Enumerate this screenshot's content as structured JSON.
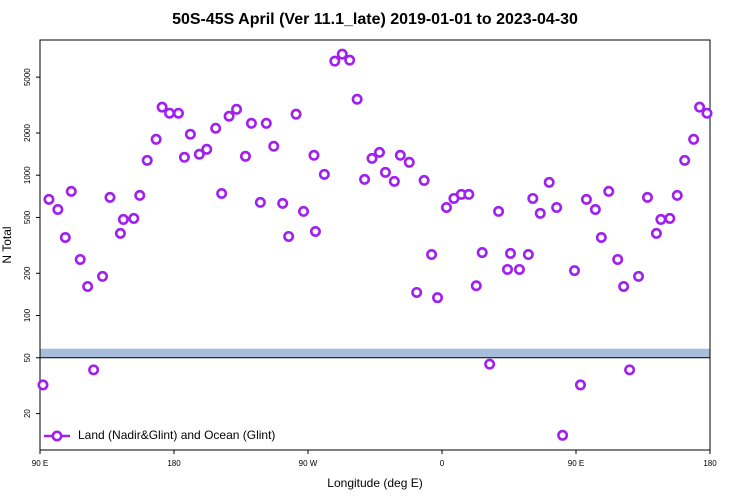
{
  "chart_data": {
    "type": "scatter",
    "title": "50S-45S April (Ver 11.1_late)   2019-01-01 to 2023-04-30",
    "x_label": "Longitude (deg E)",
    "y_label": "N Total",
    "log_y": true,
    "legend": "lower left",
    "xlim": [
      90,
      540
    ],
    "xticks": [
      {
        "value": 90,
        "label": "90 E"
      },
      {
        "value": 180,
        "label": "180"
      },
      {
        "value": 270,
        "label": "90 W"
      },
      {
        "value": 360,
        "label": "0"
      },
      {
        "value": 450,
        "label": "90 E"
      },
      {
        "value": 540,
        "label": "180"
      }
    ],
    "ylim": [
      11,
      9200
    ],
    "yticks": [
      20,
      50,
      100,
      200,
      500,
      1000,
      2000,
      5000
    ],
    "band": {
      "ylim": [
        50,
        58
      ],
      "color": "#a6bddb"
    },
    "hline": 50,
    "series": [
      {
        "name": "Land (Nadir&Glint) and Ocean (Glint)",
        "color": "#a020f0",
        "x": [
          92,
          96,
          102,
          107,
          111,
          117,
          122,
          126,
          132,
          137,
          144,
          146,
          153,
          157,
          162,
          168,
          172,
          177,
          183,
          187,
          191,
          197,
          202,
          208,
          212,
          217,
          222,
          228,
          232,
          238,
          242,
          247,
          253,
          257,
          262,
          267,
          274,
          275,
          281,
          288,
          293,
          298,
          303,
          308,
          313,
          318,
          322,
          328,
          332,
          338,
          343,
          348,
          353,
          357,
          363,
          368,
          373,
          378,
          383,
          387,
          392,
          398,
          404,
          406,
          412,
          418,
          421,
          426,
          432,
          437,
          441,
          449,
          453,
          457,
          463,
          467,
          472,
          478,
          482,
          486,
          492,
          498,
          504,
          507,
          513,
          518,
          523,
          529,
          533,
          538
        ],
        "values": [
          32,
          673,
          570,
          360,
          767,
          251,
          161,
          41,
          190,
          695,
          385,
          484,
          492,
          718,
          1276,
          1803,
          3055,
          2767,
          2767,
          1342,
          1959,
          1410,
          1530,
          2163,
          741,
          2632,
          2950,
          1364,
          2344,
          640,
          2344,
          1608,
          630,
          366,
          2723,
          552,
          1387,
          397,
          1014,
          6500,
          7290,
          6610,
          3480,
          934,
          1318,
          1455,
          1048,
          904,
          1387,
          1236,
          146,
          918,
          272,
          134,
          589,
          683,
          730,
          730,
          163,
          281,
          45,
          552,
          213,
          277,
          213,
          272,
          683,
          535,
          889,
          589,
          14,
          209,
          32,
          673,
          570,
          360,
          767,
          251,
          161,
          41,
          190,
          695,
          385,
          484,
          492,
          718,
          1276,
          1803,
          3055,
          2767
        ]
      }
    ]
  }
}
